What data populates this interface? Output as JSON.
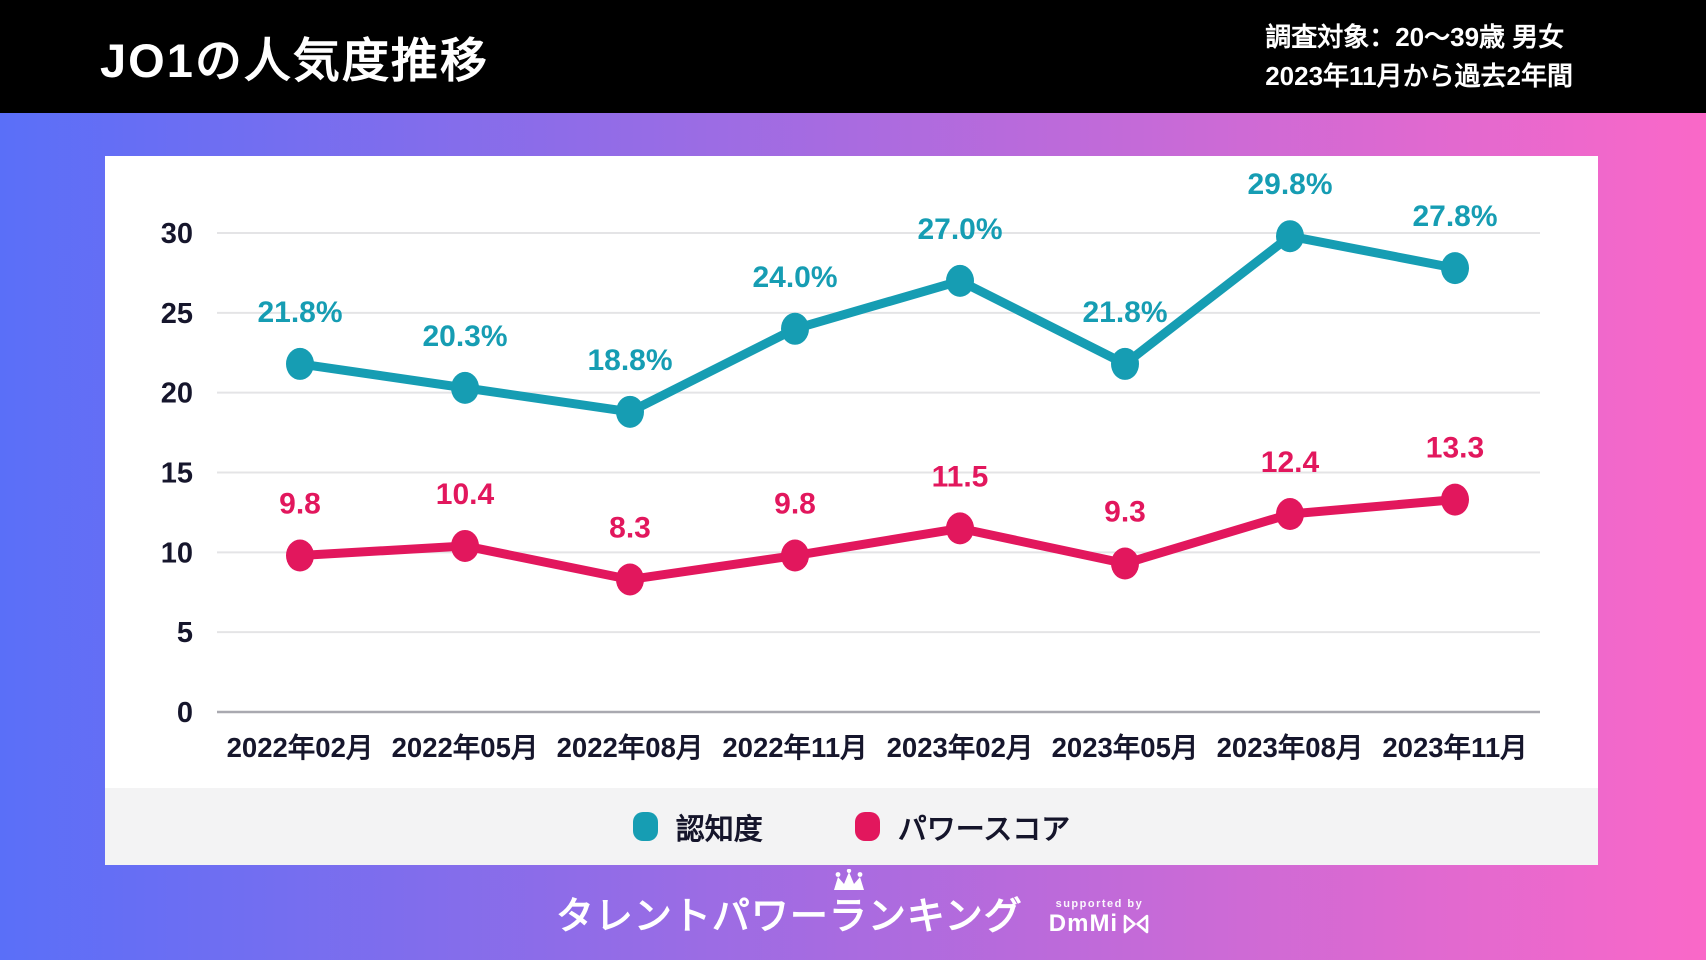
{
  "header": {
    "title": "JO1の人気度推移",
    "note_line1": "調査対象：20〜39歳 男女",
    "note_line2": "2023年11月から過去2年間"
  },
  "chart_data": {
    "type": "line",
    "title": "JO1の人気度推移",
    "categories": [
      "2022年02月",
      "2022年05月",
      "2022年08月",
      "2022年11月",
      "2023年02月",
      "2023年05月",
      "2023年08月",
      "2023年11月"
    ],
    "series": [
      {
        "name": "認知度",
        "color": "#169db3",
        "values": [
          21.8,
          20.3,
          18.8,
          24.0,
          27.0,
          21.8,
          29.8,
          27.8
        ],
        "label_suffix": "%"
      },
      {
        "name": "パワースコア",
        "color": "#e2175d",
        "values": [
          9.8,
          10.4,
          8.3,
          9.8,
          11.5,
          9.3,
          12.4,
          13.3
        ],
        "label_suffix": ""
      }
    ],
    "ylim": [
      0,
      30
    ],
    "yticks": [
      0,
      5,
      10,
      15,
      20,
      25,
      30
    ],
    "grid": true,
    "legend_position": "bottom",
    "xlabel": "",
    "ylabel": ""
  },
  "footer": {
    "logo_text": "タレントパワーランキング",
    "supported_by": "supported by",
    "brand_name": "DmMi"
  },
  "colors": {
    "header_bg": "#000000",
    "gradient_left": "#5a6ff8",
    "gradient_right": "#fa68c8",
    "card_bg": "#ffffff",
    "legend_bg": "#f3f3f4",
    "awareness_teal": "#169db3",
    "power_score_pink": "#e2175d",
    "tick_text": "#16162c",
    "grid_line": "#e4e4e6",
    "axis_line": "#a9a9b0"
  }
}
